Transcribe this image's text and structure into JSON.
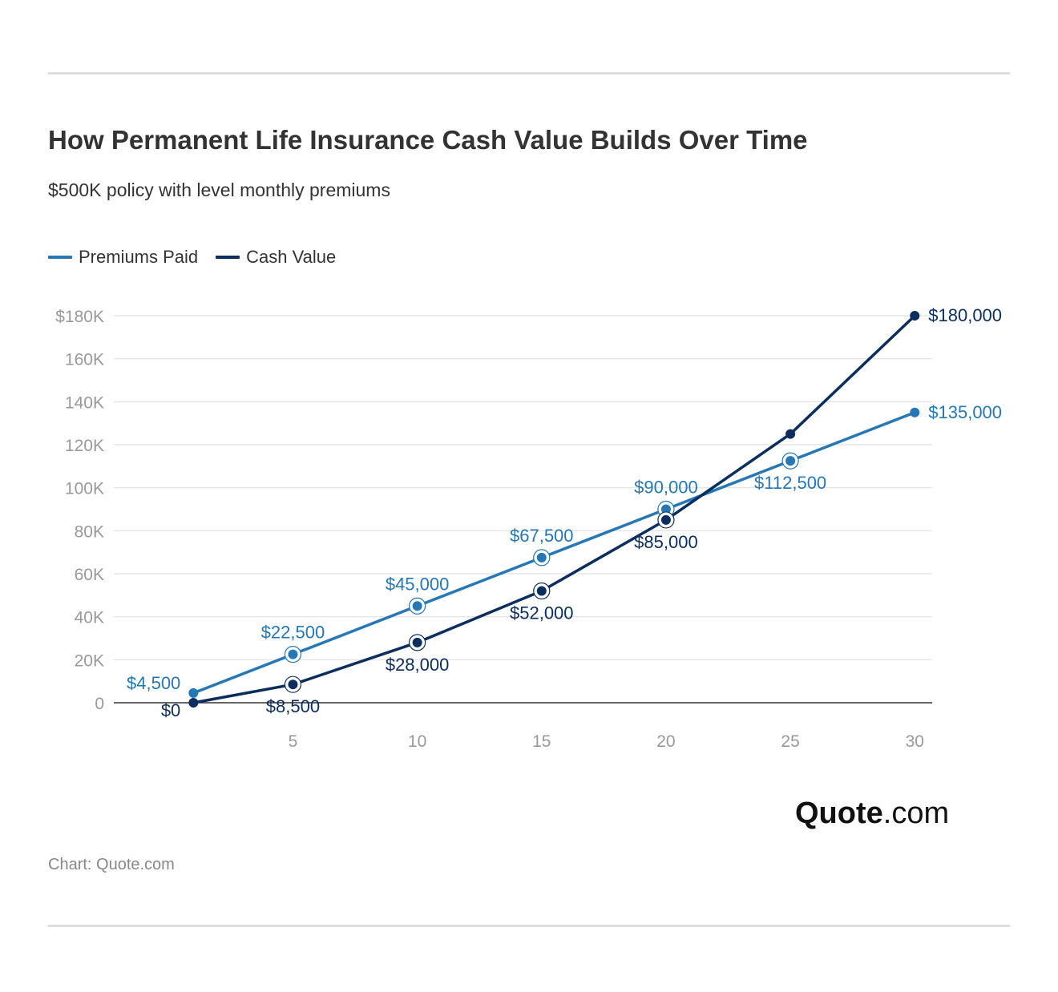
{
  "header": {
    "title": "How Permanent Life Insurance Cash Value Builds Over Time",
    "subtitle": "$500K policy with level monthly premiums"
  },
  "footer": {
    "source": "Chart: Quote.com",
    "logo_bold": "Quote",
    "logo_rest": ".com"
  },
  "colors": {
    "premiums": "#2577b5",
    "cash": "#0b2e5e",
    "grid": "#e6e6e6",
    "axis": "#333333",
    "tick": "#999999"
  },
  "chart_data": {
    "type": "line",
    "title": "How Permanent Life Insurance Cash Value Builds Over Time",
    "subtitle": "$500K policy with level monthly premiums",
    "xlabel": "",
    "ylabel": "",
    "x": [
      1,
      5,
      10,
      15,
      20,
      25,
      30
    ],
    "xlim": [
      -2.2,
      30.7
    ],
    "ylim": [
      0,
      180000
    ],
    "x_ticks": [
      {
        "value": 5,
        "label": "5"
      },
      {
        "value": 10,
        "label": "10"
      },
      {
        "value": 15,
        "label": "15"
      },
      {
        "value": 20,
        "label": "20"
      },
      {
        "value": 25,
        "label": "25"
      },
      {
        "value": 30,
        "label": "30"
      }
    ],
    "y_ticks": [
      {
        "value": 0,
        "label": "0"
      },
      {
        "value": 20000,
        "label": "20K"
      },
      {
        "value": 40000,
        "label": "40K"
      },
      {
        "value": 60000,
        "label": "60K"
      },
      {
        "value": 80000,
        "label": "80K"
      },
      {
        "value": 100000,
        "label": "100K"
      },
      {
        "value": 120000,
        "label": "120K"
      },
      {
        "value": 140000,
        "label": "140K"
      },
      {
        "value": 160000,
        "label": "160K"
      },
      {
        "value": 180000,
        "label": "$180K"
      }
    ],
    "grid": true,
    "legend": "top-left",
    "series": [
      {
        "key": "premiums",
        "name": "Premiums Paid",
        "values": [
          4500,
          22500,
          45000,
          67500,
          90000,
          112500,
          135000
        ],
        "labels": [
          "$4,500",
          "$22,500",
          "$45,000",
          "$67,500",
          "$90,000",
          "$112,500",
          "$135,000"
        ],
        "label_position": [
          "left",
          "above",
          "above",
          "above",
          "above",
          "below",
          "right"
        ]
      },
      {
        "key": "cash",
        "name": "Cash Value",
        "values": [
          0,
          8500,
          28000,
          52000,
          85000,
          125000,
          180000
        ],
        "labels": [
          "$0",
          "$8,500",
          "$28,000",
          "$52,000",
          "$85,000",
          "",
          "$180,000"
        ],
        "label_position": [
          "left",
          "below",
          "below",
          "below",
          "below",
          "none",
          "right"
        ]
      }
    ]
  }
}
